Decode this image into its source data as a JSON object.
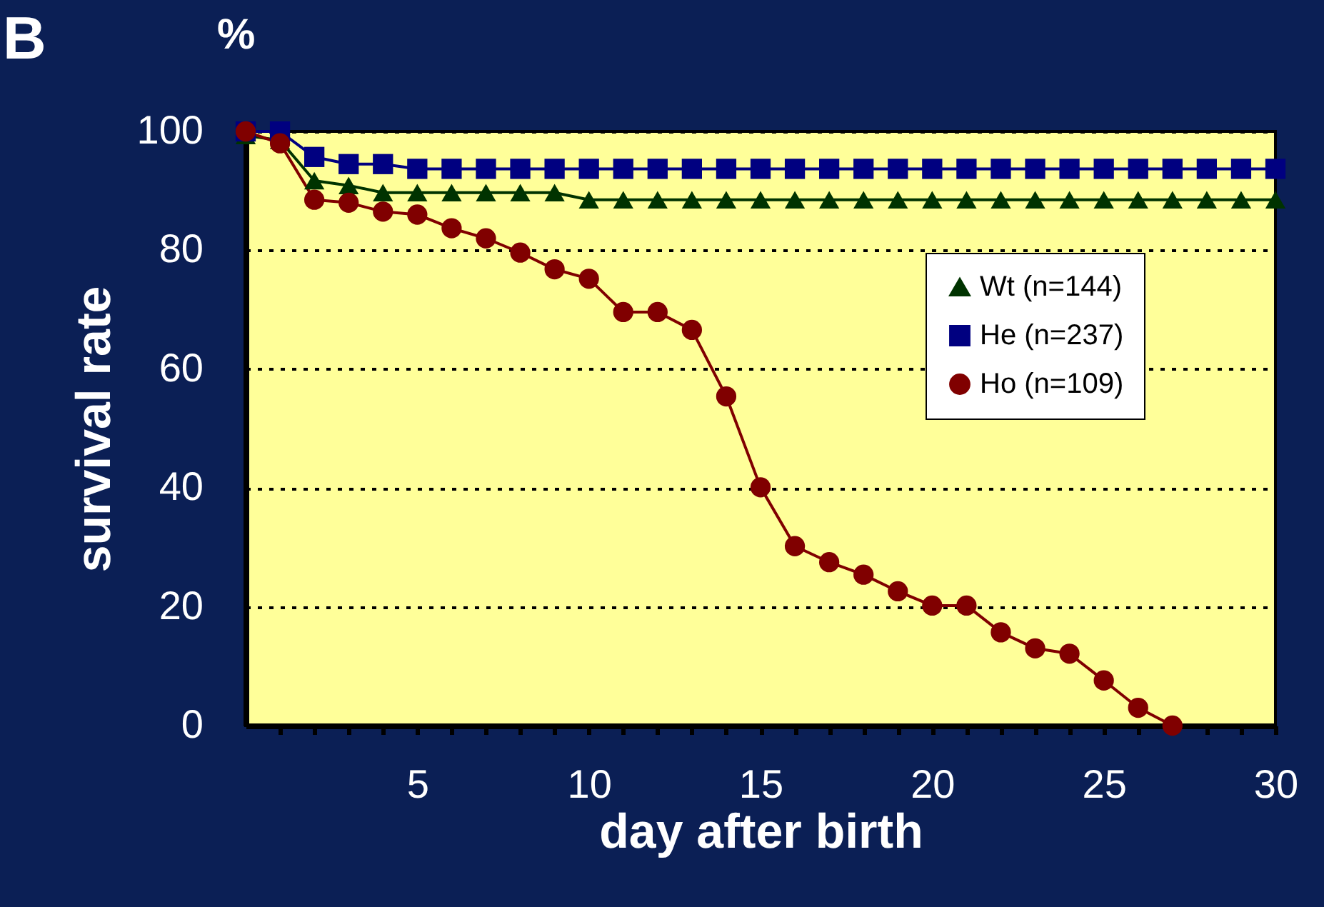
{
  "chart_data": {
    "type": "line",
    "title": "B",
    "annotations": [
      "%"
    ],
    "xlabel": "day after birth",
    "ylabel": "survival rate",
    "xlim": [
      0,
      30
    ],
    "ylim": [
      0,
      100
    ],
    "xticks": [
      {
        "value": 1,
        "label": null
      },
      {
        "value": 2,
        "label": null
      },
      {
        "value": 3,
        "label": null
      },
      {
        "value": 4,
        "label": null
      },
      5,
      {
        "value": 6,
        "label": null
      },
      {
        "value": 7,
        "label": null
      },
      {
        "value": 8,
        "label": null
      },
      {
        "value": 9,
        "label": null
      },
      10,
      {
        "value": 11,
        "label": null
      },
      {
        "value": 12,
        "label": null
      },
      {
        "value": 13,
        "label": null
      },
      {
        "value": 14,
        "label": null
      },
      15,
      {
        "value": 16,
        "label": null
      },
      {
        "value": 17,
        "label": null
      },
      {
        "value": 18,
        "label": null
      },
      {
        "value": 19,
        "label": null
      },
      20,
      {
        "value": 21,
        "label": null
      },
      {
        "value": 22,
        "label": null
      },
      {
        "value": 23,
        "label": null
      },
      {
        "value": 24,
        "label": null
      },
      25,
      {
        "value": 26,
        "label": null
      },
      {
        "value": 27,
        "label": null
      },
      {
        "value": 28,
        "label": null
      },
      {
        "value": 29,
        "label": null
      },
      30
    ],
    "yticks": [
      0,
      20,
      40,
      60,
      80,
      100
    ],
    "grid": "y",
    "legend": "right",
    "line_style": "solid",
    "x": [
      0,
      1,
      2,
      3,
      4,
      5,
      6,
      7,
      8,
      9,
      10,
      11,
      12,
      13,
      14,
      15,
      16,
      17,
      18,
      19,
      20,
      21,
      22,
      23,
      24,
      25,
      26,
      27,
      28,
      29,
      30
    ],
    "series": [
      {
        "name": "Wt (n=144)",
        "color": "#003300",
        "marker": "triangle",
        "values": [
          99.3,
          98.5,
          91.7,
          90.9,
          89.7,
          89.7,
          89.7,
          89.7,
          89.7,
          89.7,
          88.5,
          88.5,
          88.5,
          88.5,
          88.5,
          88.5,
          88.5,
          88.5,
          88.5,
          88.5,
          88.5,
          88.5,
          88.5,
          88.5,
          88.5,
          88.5,
          88.5,
          88.5,
          88.5,
          88.5,
          88.5
        ]
      },
      {
        "name": "He (n=237)",
        "color": "#000080",
        "marker": "square",
        "values": [
          100,
          100,
          95.7,
          94.5,
          94.5,
          93.7,
          93.7,
          93.7,
          93.7,
          93.7,
          93.7,
          93.7,
          93.7,
          93.7,
          93.7,
          93.7,
          93.7,
          93.7,
          93.7,
          93.7,
          93.7,
          93.7,
          93.7,
          93.7,
          93.7,
          93.7,
          93.7,
          93.7,
          93.7,
          93.7,
          93.7
        ]
      },
      {
        "name": "Ho (n=109)",
        "color": "#800000",
        "marker": "circle",
        "x": [
          0,
          1,
          2,
          3,
          4,
          5,
          6,
          7,
          8,
          9,
          10,
          11,
          12,
          13,
          14,
          15,
          16,
          17,
          18,
          19,
          20,
          21,
          22,
          23,
          24,
          25,
          26,
          27
        ],
        "values": [
          100,
          98,
          88.5,
          88,
          86.5,
          86,
          83.7,
          82,
          79.6,
          76.8,
          75.2,
          69.6,
          69.6,
          66.6,
          55.4,
          40.1,
          30.2,
          27.5,
          25.4,
          22.6,
          20.2,
          20.2,
          15.7,
          13,
          12.1,
          7.6,
          3,
          0
        ]
      }
    ]
  }
}
